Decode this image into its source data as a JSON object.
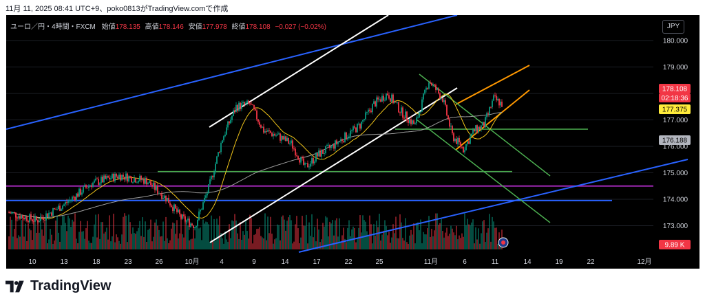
{
  "caption": "11月 11, 2025 08:41 UTC+9、poko0813がTradingView.comで作成",
  "header": {
    "symbol": "ユーロ／円・4時間・FXCM",
    "open_label": "始値",
    "open": "178.135",
    "high_label": "高値",
    "high": "178.146",
    "low_label": "安値",
    "low": "177.978",
    "close_label": "終値",
    "close": "178.108",
    "change": "−0.027 (−0.02%)"
  },
  "currency_button": "JPY",
  "price_axis": [
    "180.000",
    "179.000",
    "178.000",
    "177.000",
    "176.000",
    "175.000",
    "174.000",
    "173.000"
  ],
  "price_tags": {
    "last_price": "178.108",
    "countdown": "02:18:36",
    "ma_fast": "177.375",
    "ma_slow": "176.188",
    "volume": "9.89 K"
  },
  "time_axis": [
    "10",
    "13",
    "18",
    "23",
    "26",
    "10月",
    "4",
    "9",
    "14",
    "17",
    "22",
    "25",
    "11月",
    "6",
    "11",
    "14",
    "19",
    "22",
    "12月"
  ],
  "brand": "TradingView",
  "colors": {
    "background": "#000000",
    "up": "#089981",
    "down": "#f23645",
    "trend_blue": "#2962ff",
    "channel_white": "#ffffff",
    "channel_orange": "#ff9800",
    "channel_green": "#4caf50",
    "level_purple": "#9c27b0",
    "ma_yellow": "#f0c419",
    "ma_gray": "#9e9e9e"
  }
}
